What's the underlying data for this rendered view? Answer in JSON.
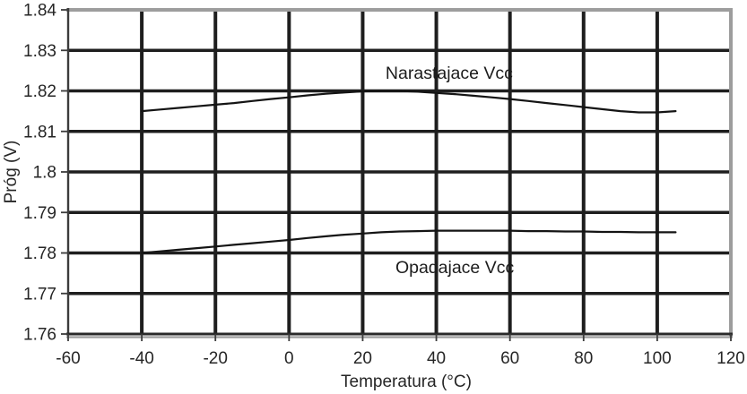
{
  "page": {
    "background": "#ffffff"
  },
  "chart_data": {
    "type": "line",
    "title": "",
    "xlabel": "Temperatura (°C)",
    "ylabel": "Próg (V)",
    "xlim": [
      -60,
      120
    ],
    "ylim": [
      1.76,
      1.84
    ],
    "xticks": [
      -60,
      -40,
      -20,
      0,
      20,
      40,
      60,
      80,
      100,
      120
    ],
    "xtick_labels": [
      "-60",
      "-40",
      "-20",
      "0",
      "20",
      "40",
      "60",
      "80",
      "100",
      "120"
    ],
    "yticks": [
      1.76,
      1.77,
      1.78,
      1.79,
      1.8,
      1.81,
      1.82,
      1.83,
      1.84
    ],
    "ytick_labels": [
      "1.76",
      "1.77",
      "1.78",
      "1.79",
      "1.8",
      "1.81",
      "1.82",
      "1.83",
      "1.84"
    ],
    "grid": true,
    "legend_position": "none",
    "colors": {
      "gridline": "#1e1e1e",
      "axis_dark": "#3c3c3c",
      "border_gray": "#9d9d9d",
      "series_line": "#141414",
      "text": "#262626"
    },
    "series": [
      {
        "name": "Narastajace Vcc",
        "x": [
          -40,
          -35,
          -30,
          -25,
          -20,
          -15,
          -10,
          -5,
          0,
          5,
          10,
          15,
          20,
          25,
          30,
          35,
          40,
          45,
          50,
          55,
          60,
          65,
          70,
          75,
          80,
          85,
          90,
          95,
          100,
          105
        ],
        "y": [
          1.815,
          1.8154,
          1.8158,
          1.8162,
          1.8166,
          1.817,
          1.8175,
          1.818,
          1.8184,
          1.8189,
          1.8193,
          1.8196,
          1.8199,
          1.82,
          1.82,
          1.8198,
          1.8195,
          1.8192,
          1.8188,
          1.8184,
          1.818,
          1.8175,
          1.817,
          1.8165,
          1.816,
          1.8155,
          1.815,
          1.8147,
          1.8147,
          1.815
        ]
      },
      {
        "name": "Opadajace Vcc",
        "x": [
          -40,
          -35,
          -30,
          -25,
          -20,
          -15,
          -10,
          -5,
          0,
          5,
          10,
          15,
          20,
          25,
          30,
          35,
          40,
          45,
          50,
          55,
          60,
          65,
          70,
          75,
          80,
          85,
          90,
          95,
          100,
          105
        ],
        "y": [
          1.78,
          1.7804,
          1.7808,
          1.7812,
          1.7816,
          1.782,
          1.7824,
          1.7828,
          1.7832,
          1.7837,
          1.7841,
          1.7845,
          1.7848,
          1.7851,
          1.7853,
          1.7854,
          1.7855,
          1.7855,
          1.7855,
          1.7855,
          1.7855,
          1.7854,
          1.7854,
          1.7853,
          1.7853,
          1.7852,
          1.7852,
          1.7851,
          1.7851,
          1.7851
        ]
      }
    ],
    "annotations": [
      {
        "text": "Narastajace Vcc",
        "x": 43.5,
        "y": 1.823
      },
      {
        "text": "Opadajace Vcc",
        "x": 45.0,
        "y": 1.775
      }
    ]
  }
}
